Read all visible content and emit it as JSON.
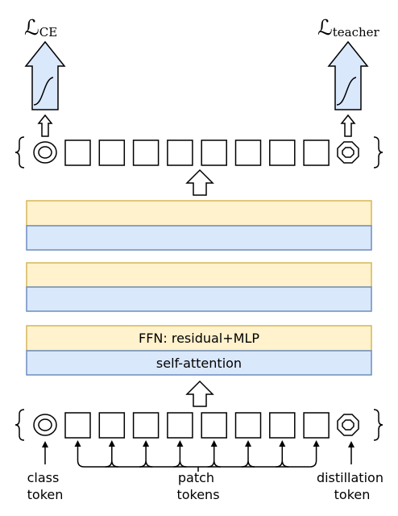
{
  "losses": {
    "left": {
      "symbol": "ℒ",
      "subscript": "CE"
    },
    "right": {
      "symbol": "ℒ",
      "subscript": "teacher"
    }
  },
  "blocks": {
    "ffn_label": "FFN: residual+MLP",
    "attention_label": "self-attention",
    "ffn_color": "#fff2cc",
    "ffn_border": "#d6b656",
    "attention_color": "#dae8fc",
    "attention_border": "#6c8ebf"
  },
  "labels": {
    "class_token": [
      "class",
      "token"
    ],
    "patch_tokens": [
      "patch",
      "tokens"
    ],
    "distillation_token": [
      "distillation",
      "token"
    ]
  },
  "tokens": {
    "patch_count": 8
  }
}
